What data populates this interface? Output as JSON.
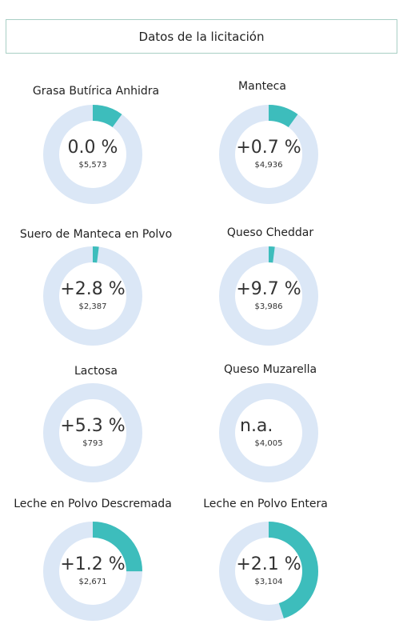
{
  "header": {
    "title": "Datos de la licitación"
  },
  "colors": {
    "ring_bg": "#dbe7f6",
    "ring_fg": "#3dbdbc",
    "border": "#a9cfc5"
  },
  "items": [
    {
      "name": "Grasa Butírica Anhidra",
      "change": "0.0 %",
      "price": "$5,573",
      "progress": 0.1
    },
    {
      "name": "Manteca",
      "change": "+0.7 %",
      "price": "$4,936",
      "progress": 0.1
    },
    {
      "name": "Suero de Manteca en Polvo",
      "change": "+2.8 %",
      "price": "$2,387",
      "progress": 0.02
    },
    {
      "name": "Queso Cheddar",
      "change": "+9.7 %",
      "price": "$3,986",
      "progress": 0.02
    },
    {
      "name": "Lactosa",
      "change": "+5.3 %",
      "price": "$793",
      "progress": 0.0
    },
    {
      "name": "Queso Muzarella",
      "change": "n.a.",
      "price": "$4,005",
      "progress": 0.0
    },
    {
      "name": "Leche en Polvo Descremada",
      "change": "+1.2 %",
      "price": "$2,671",
      "progress": 0.25
    },
    {
      "name": "Leche en Polvo Entera",
      "change": "+2.1 %",
      "price": "$3,104",
      "progress": 0.45
    }
  ]
}
